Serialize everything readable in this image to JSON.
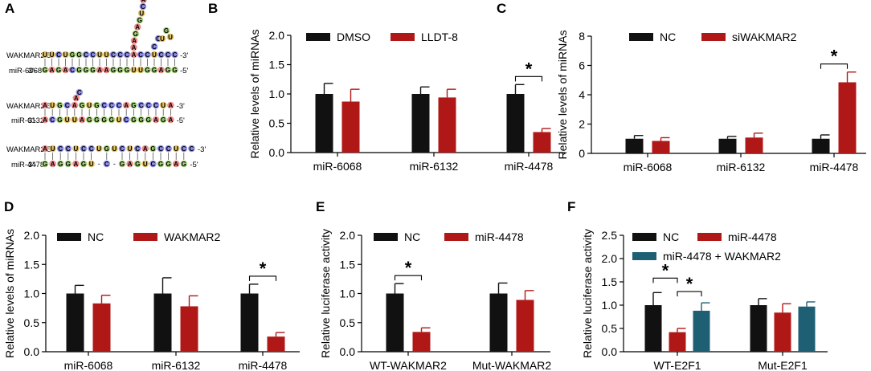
{
  "figure": {
    "colors": {
      "black": "#111111",
      "red": "#b01818",
      "teal": "#1e5f74",
      "A": "#f08c8c",
      "C": "#8f8fe8",
      "G": "#a9d27e",
      "U": "#e0c060"
    },
    "panelA": {
      "label": "A",
      "pairs": [
        {
          "top_name": "WAKMAR2 5'-",
          "top_seq": "UUCUGGCCUUCCCACCUCCC",
          "top_end": "-3'",
          "bottom_name": "miR-6068",
          "bottom_seq": "GAGACGGGAAGGGUUGGAGG",
          "bottom_prefix": "3'-",
          "bottom_end": "-5'",
          "loop1": "AAGAGUCA",
          "loop2": "CCUGU"
        },
        {
          "top_name": "WAKMAR2 5'-",
          "top_seq": "AUGCAGUGCCCAGCCCUA",
          "top_end": "-3'",
          "bottom_name": "miR-6132",
          "bottom_prefix": "3'-",
          "bottom_seq": "ACGUUAGGGGUCGGGAGA",
          "bottom_end": "-5'",
          "loop1": "AC"
        },
        {
          "top_name": "WAKMAR2 5'-",
          "top_seq": "AUCCUCCUGUCUCAGCCUCC",
          "top_end": "-3'",
          "bottom_name": "miR-4478",
          "bottom_prefix": "3'-",
          "bottom_seq": "GAGGAGU-C-GAGUCGGAG",
          "bottom_end": "-5'"
        }
      ]
    }
  },
  "chart_data": [
    {
      "label": "B",
      "type": "bar",
      "ylabel": "Relative levels of miRNAs",
      "ylim": [
        0,
        2.0
      ],
      "yticks": [
        "0.0",
        "0.5",
        "1.0",
        "1.5",
        "2.0"
      ],
      "categories": [
        "miR-6068",
        "miR-6132",
        "miR-4478"
      ],
      "series": [
        {
          "name": "DMSO",
          "color": "#111111",
          "values": [
            1.0,
            1.0,
            1.0
          ],
          "errors": [
            0.18,
            0.12,
            0.16
          ]
        },
        {
          "name": "LLDT-8",
          "color": "#b01818",
          "values": [
            0.87,
            0.94,
            0.35
          ],
          "errors": [
            0.21,
            0.14,
            0.06
          ]
        }
      ],
      "annotations": [
        "*"
      ]
    },
    {
      "label": "C",
      "type": "bar",
      "ylabel": "Relative levels of miRNAs",
      "ylim": [
        0,
        8
      ],
      "yticks": [
        "0",
        "2",
        "4",
        "6",
        "8"
      ],
      "categories": [
        "miR-6068",
        "miR-6132",
        "miR-4478"
      ],
      "series": [
        {
          "name": "NC",
          "color": "#111111",
          "values": [
            1.0,
            1.0,
            1.0
          ],
          "errors": [
            0.22,
            0.16,
            0.26
          ]
        },
        {
          "name": "siWAKMAR2",
          "color": "#b01818",
          "values": [
            0.85,
            1.08,
            4.85
          ],
          "errors": [
            0.22,
            0.3,
            0.7
          ]
        }
      ],
      "annotations": [
        "*"
      ]
    },
    {
      "label": "D",
      "type": "bar",
      "ylabel": "Relative levels of miRNAs",
      "ylim": [
        0,
        2.0
      ],
      "yticks": [
        "0.0",
        "0.5",
        "1.0",
        "1.5",
        "2.0"
      ],
      "categories": [
        "miR-6068",
        "miR-6132",
        "miR-4478"
      ],
      "series": [
        {
          "name": "NC",
          "color": "#111111",
          "values": [
            1.0,
            1.0,
            1.0
          ],
          "errors": [
            0.14,
            0.27,
            0.16
          ]
        },
        {
          "name": "WAKMAR2",
          "color": "#b01818",
          "values": [
            0.83,
            0.78,
            0.26
          ],
          "errors": [
            0.14,
            0.18,
            0.07
          ]
        }
      ],
      "annotations": [
        "*"
      ]
    },
    {
      "label": "E",
      "type": "bar",
      "ylabel": "Relative luciferase activity",
      "ylim": [
        0,
        2.0
      ],
      "yticks": [
        "0.0",
        "0.5",
        "1.0",
        "1.5",
        "2.0"
      ],
      "categories": [
        "WT-WAKMAR2",
        "Mut-WAKMAR2"
      ],
      "series": [
        {
          "name": "NC",
          "color": "#111111",
          "values": [
            1.0,
            1.0
          ],
          "errors": [
            0.17,
            0.18
          ]
        },
        {
          "name": "miR-4478",
          "color": "#b01818",
          "values": [
            0.34,
            0.89
          ],
          "errors": [
            0.07,
            0.16
          ]
        }
      ],
      "annotations": [
        "*"
      ]
    },
    {
      "label": "F",
      "type": "bar",
      "ylabel": "Relative luciferase activity",
      "ylim": [
        0,
        2.5
      ],
      "yticks": [
        "0.0",
        "0.5",
        "1.0",
        "1.5",
        "2.0",
        "2.5"
      ],
      "categories": [
        "WT-E2F1",
        "Mut-E2F1"
      ],
      "series": [
        {
          "name": "NC",
          "color": "#111111",
          "values": [
            1.0,
            1.0
          ],
          "errors": [
            0.27,
            0.14
          ]
        },
        {
          "name": "miR-4478",
          "color": "#b01818",
          "values": [
            0.42,
            0.84
          ],
          "errors": [
            0.08,
            0.19
          ]
        },
        {
          "name": "miR-4478 + WAKMAR2",
          "color": "#1e5f74",
          "values": [
            0.88,
            0.97
          ],
          "errors": [
            0.17,
            0.1
          ]
        }
      ],
      "annotations": [
        "*",
        "*"
      ]
    }
  ]
}
